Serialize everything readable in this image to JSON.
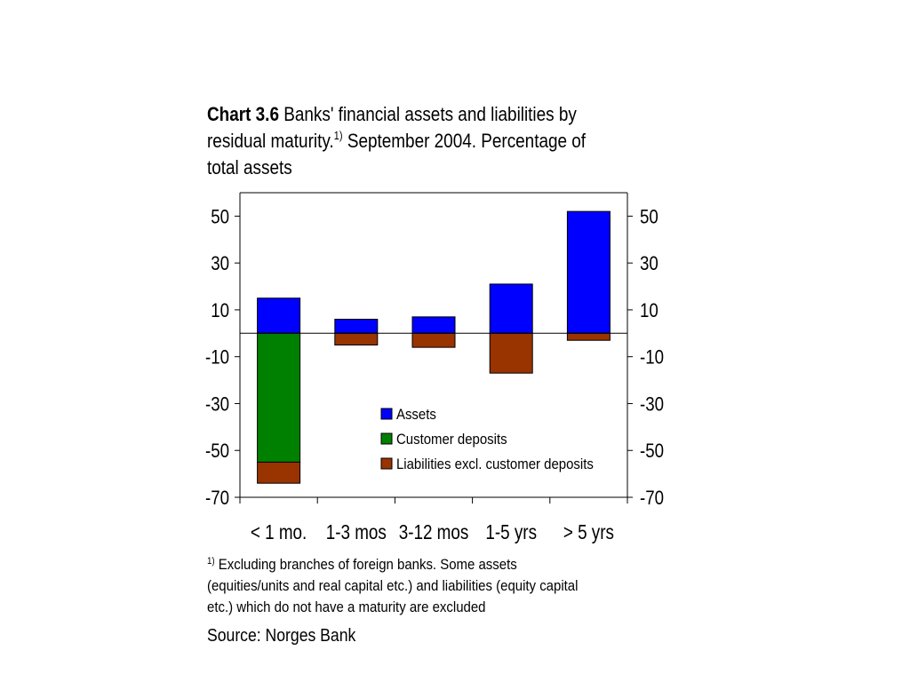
{
  "title": {
    "chart_number": "Chart 3.6",
    "line1": " Banks' financial assets and liabilities by",
    "line2_pre": "residual maturity.",
    "footnote_ref": "1)",
    "line2_post": " September 2004. Percentage of",
    "line3": "total assets"
  },
  "footnote": {
    "ref": "1)",
    "line1": " Excluding branches of  foreign banks. Some assets",
    "line2": "(equities/units and real capital etc.) and liabilities (equity capital",
    "line3": "etc.) which do not have a maturity are excluded"
  },
  "source": "Source: Norges Bank",
  "colors": {
    "assets": "#0000ff",
    "customer_deposits": "#008000",
    "liabilities": "#993300"
  },
  "chart_data": {
    "type": "bar",
    "stacked": true,
    "categories": [
      "< 1 mo.",
      "1-3 mos",
      "3-12 mos",
      "1-5 yrs",
      "> 5 yrs"
    ],
    "series": [
      {
        "name": "Assets",
        "values": [
          15,
          6,
          7,
          21,
          52
        ]
      },
      {
        "name": "Customer deposits",
        "values": [
          -55,
          0,
          0,
          0,
          0
        ]
      },
      {
        "name": "Liabilities excl. customer deposits",
        "values": [
          -9,
          -5,
          -6,
          -17,
          -3
        ]
      }
    ],
    "ylim": [
      -70,
      60
    ],
    "yticks": [
      50,
      30,
      10,
      -10,
      -30,
      -50,
      -70
    ],
    "ytick_labels": [
      "50",
      "30",
      "10",
      "-10",
      "-30",
      "-50",
      "-70"
    ],
    "legend_position": "lower-right",
    "grid": false
  }
}
